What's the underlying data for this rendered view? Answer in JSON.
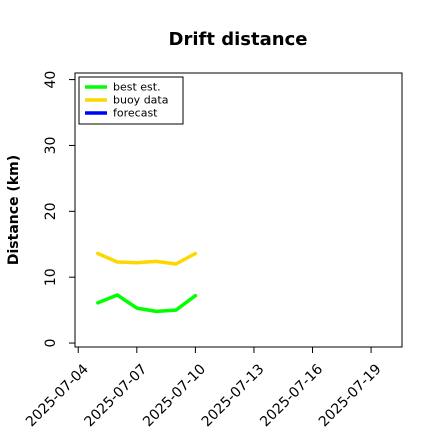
{
  "chart_data": {
    "type": "line",
    "title": "Drift distance",
    "xlabel": "",
    "ylabel": "Distance (km)",
    "ylim": [
      -0.6,
      41
    ],
    "xlim": [
      "2025-07-03 20:00",
      "2025-07-20 14:00"
    ],
    "yticks": [
      0,
      10,
      20,
      30,
      40
    ],
    "xticks": [
      {
        "value": "2025-07-04",
        "label": "2025-07-04",
        "color": "#000000"
      },
      {
        "value": "2025-07-07",
        "label": "2025-07-07",
        "color": "#000000"
      },
      {
        "value": "2025-07-10",
        "label": "2025-07-10",
        "color": "#228b22"
      },
      {
        "value": "2025-07-13",
        "label": "2025-07-13",
        "color": "#000000"
      },
      {
        "value": "2025-07-16",
        "label": "2025-07-16",
        "color": "#000000"
      },
      {
        "value": "2025-07-19",
        "label": "2025-07-19",
        "color": "#000000"
      }
    ],
    "grid": false,
    "legend_position": "top-left",
    "series": [
      {
        "name": "best est.",
        "color": "#00ff00",
        "x": [
          "2025-07-05",
          "2025-07-06",
          "2025-07-07",
          "2025-07-08",
          "2025-07-09",
          "2025-07-10"
        ],
        "y": [
          6.1,
          7.3,
          5.3,
          4.8,
          5.0,
          7.2
        ]
      },
      {
        "name": "buoy data",
        "color": "#ffd700",
        "x": [
          "2025-07-05",
          "2025-07-06",
          "2025-07-07",
          "2025-07-08",
          "2025-07-09",
          "2025-07-10"
        ],
        "y": [
          13.6,
          12.3,
          12.2,
          12.4,
          12.0,
          13.6
        ]
      },
      {
        "name": "forecast",
        "color": "#0000ff",
        "x": [],
        "y": []
      }
    ]
  }
}
